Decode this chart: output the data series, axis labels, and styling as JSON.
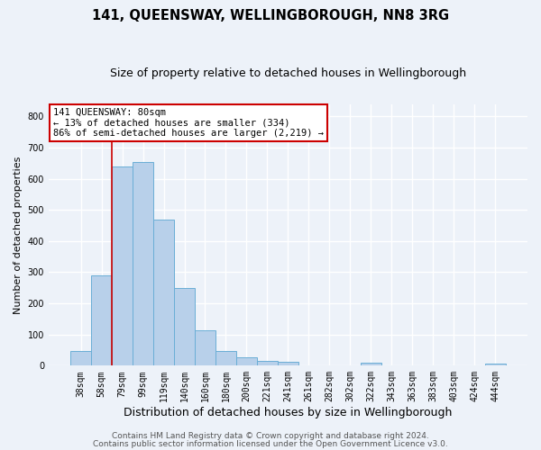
{
  "title": "141, QUEENSWAY, WELLINGBOROUGH, NN8 3RG",
  "subtitle": "Size of property relative to detached houses in Wellingborough",
  "xlabel": "Distribution of detached houses by size in Wellingborough",
  "ylabel": "Number of detached properties",
  "bar_labels": [
    "38sqm",
    "58sqm",
    "79sqm",
    "99sqm",
    "119sqm",
    "140sqm",
    "160sqm",
    "180sqm",
    "200sqm",
    "221sqm",
    "241sqm",
    "261sqm",
    "282sqm",
    "302sqm",
    "322sqm",
    "343sqm",
    "363sqm",
    "383sqm",
    "403sqm",
    "424sqm",
    "444sqm"
  ],
  "bar_values": [
    47,
    290,
    640,
    655,
    470,
    250,
    113,
    48,
    28,
    15,
    12,
    0,
    0,
    0,
    10,
    0,
    0,
    0,
    0,
    0,
    7
  ],
  "bar_color": "#b8d0ea",
  "bar_edge_color": "#6aaed6",
  "vline_x": 2,
  "vline_color": "#cc0000",
  "annotation_title": "141 QUEENSWAY: 80sqm",
  "annotation_line1": "← 13% of detached houses are smaller (334)",
  "annotation_line2": "86% of semi-detached houses are larger (2,219) →",
  "annotation_box_facecolor": "#ffffff",
  "annotation_box_edgecolor": "#cc0000",
  "ylim": [
    0,
    840
  ],
  "yticks": [
    0,
    100,
    200,
    300,
    400,
    500,
    600,
    700,
    800
  ],
  "footer1": "Contains HM Land Registry data © Crown copyright and database right 2024.",
  "footer2": "Contains public sector information licensed under the Open Government Licence v3.0.",
  "bg_color": "#edf2f9",
  "plot_bg_color": "#edf2f9",
  "grid_color": "#ffffff",
  "title_fontsize": 10.5,
  "subtitle_fontsize": 9,
  "xlabel_fontsize": 9,
  "ylabel_fontsize": 8,
  "tick_fontsize": 7,
  "annotation_fontsize": 7.5,
  "footer_fontsize": 6.5
}
